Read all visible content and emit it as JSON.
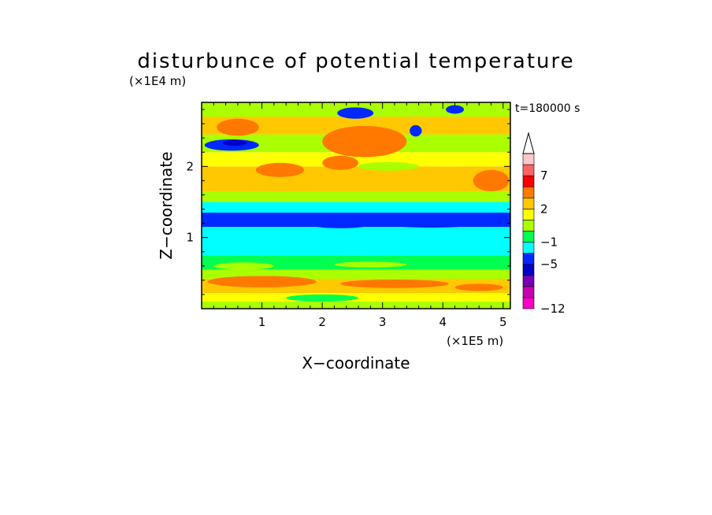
{
  "chart_data": {
    "type": "heatmap",
    "title": "disturbunce of potential temperature",
    "xlabel": "X−coordinate",
    "ylabel": "Z−coordinate",
    "x_scale_label": "(×1E5 m)",
    "y_scale_label": "(×1E4 m)",
    "time_label": "t=180000 s",
    "xlim": [
      0,
      5.12
    ],
    "ylim": [
      0,
      2.9
    ],
    "x_ticks": [
      1,
      2,
      3,
      4,
      5
    ],
    "y_ticks": [
      1,
      2
    ],
    "colorbar": {
      "levels": [
        -12,
        -11,
        -9,
        -7,
        -5,
        -3,
        -1,
        0,
        1,
        2,
        3,
        5,
        7,
        9,
        11
      ],
      "labeled_ticks": [
        -12,
        -5,
        -1,
        2,
        7
      ],
      "colors": [
        "#ff00c8",
        "#c800b4",
        "#7800b4",
        "#0000c8",
        "#0028ff",
        "#00ffff",
        "#00ff50",
        "#aaff00",
        "#ffff00",
        "#ffc800",
        "#ff7800",
        "#ff0000",
        "#ff6464",
        "#ffc8c8"
      ],
      "extend": "max"
    },
    "bands": [
      {
        "z": [
          0.0,
          0.1
        ],
        "value": 0.5
      },
      {
        "z": [
          0.1,
          0.22
        ],
        "value": 1.5
      },
      {
        "z": [
          0.22,
          0.42
        ],
        "value": 2.4
      },
      {
        "z": [
          0.42,
          0.55
        ],
        "value": 0.5
      },
      {
        "z": [
          0.55,
          0.75
        ],
        "value": -0.5
      },
      {
        "z": [
          0.75,
          1.15
        ],
        "value": -2.0
      },
      {
        "z": [
          1.15,
          1.35
        ],
        "value": -4.0
      },
      {
        "z": [
          1.35,
          1.5
        ],
        "value": -2.0
      },
      {
        "z": [
          1.5,
          1.65
        ],
        "value": 0.5
      },
      {
        "z": [
          1.65,
          2.0
        ],
        "value": 2.5
      },
      {
        "z": [
          2.0,
          2.2
        ],
        "value": 1.5
      },
      {
        "z": [
          2.2,
          2.45
        ],
        "value": 0.5
      },
      {
        "z": [
          2.45,
          2.7
        ],
        "value": 2.5
      },
      {
        "z": [
          2.7,
          2.9
        ],
        "value": 0.5
      }
    ],
    "features": [
      {
        "x": 0.6,
        "z": 2.55,
        "rx": 0.35,
        "rz": 0.12,
        "value": 3.5
      },
      {
        "x": 2.7,
        "z": 2.35,
        "rx": 0.7,
        "rz": 0.22,
        "value": 3.5
      },
      {
        "x": 2.3,
        "z": 2.05,
        "rx": 0.3,
        "rz": 0.1,
        "value": 3.5
      },
      {
        "x": 0.5,
        "z": 2.3,
        "rx": 0.45,
        "rz": 0.08,
        "value": -4.0
      },
      {
        "x": 0.55,
        "z": 2.33,
        "rx": 0.2,
        "rz": 0.04,
        "value": -6.0
      },
      {
        "x": 2.55,
        "z": 2.75,
        "rx": 0.3,
        "rz": 0.08,
        "value": -4.0
      },
      {
        "x": 3.55,
        "z": 2.5,
        "rx": 0.1,
        "rz": 0.08,
        "value": -4.0
      },
      {
        "x": 4.2,
        "z": 2.8,
        "rx": 0.15,
        "rz": 0.06,
        "value": -4.0
      },
      {
        "x": 1.3,
        "z": 1.95,
        "rx": 0.4,
        "rz": 0.1,
        "value": 3.5
      },
      {
        "x": 3.1,
        "z": 2.0,
        "rx": 0.5,
        "rz": 0.06,
        "value": 0.5
      },
      {
        "x": 4.8,
        "z": 1.8,
        "rx": 0.3,
        "rz": 0.15,
        "value": 3.5
      },
      {
        "x": 0.6,
        "z": 1.25,
        "rx": 0.6,
        "rz": 0.06,
        "value": -4.0
      },
      {
        "x": 2.3,
        "z": 1.2,
        "rx": 0.55,
        "rz": 0.07,
        "value": -4.0
      },
      {
        "x": 3.8,
        "z": 1.2,
        "rx": 0.8,
        "rz": 0.06,
        "value": -4.0
      },
      {
        "x": 1.0,
        "z": 0.38,
        "rx": 0.9,
        "rz": 0.08,
        "value": 3.5
      },
      {
        "x": 3.2,
        "z": 0.35,
        "rx": 0.9,
        "rz": 0.06,
        "value": 3.5
      },
      {
        "x": 4.6,
        "z": 0.3,
        "rx": 0.4,
        "rz": 0.05,
        "value": 3.5
      },
      {
        "x": 2.0,
        "z": 0.15,
        "rx": 0.6,
        "rz": 0.05,
        "value": -0.5
      },
      {
        "x": 0.7,
        "z": 0.6,
        "rx": 0.5,
        "rz": 0.05,
        "value": 0.5
      },
      {
        "x": 2.8,
        "z": 0.62,
        "rx": 0.6,
        "rz": 0.04,
        "value": 0.5
      }
    ]
  }
}
